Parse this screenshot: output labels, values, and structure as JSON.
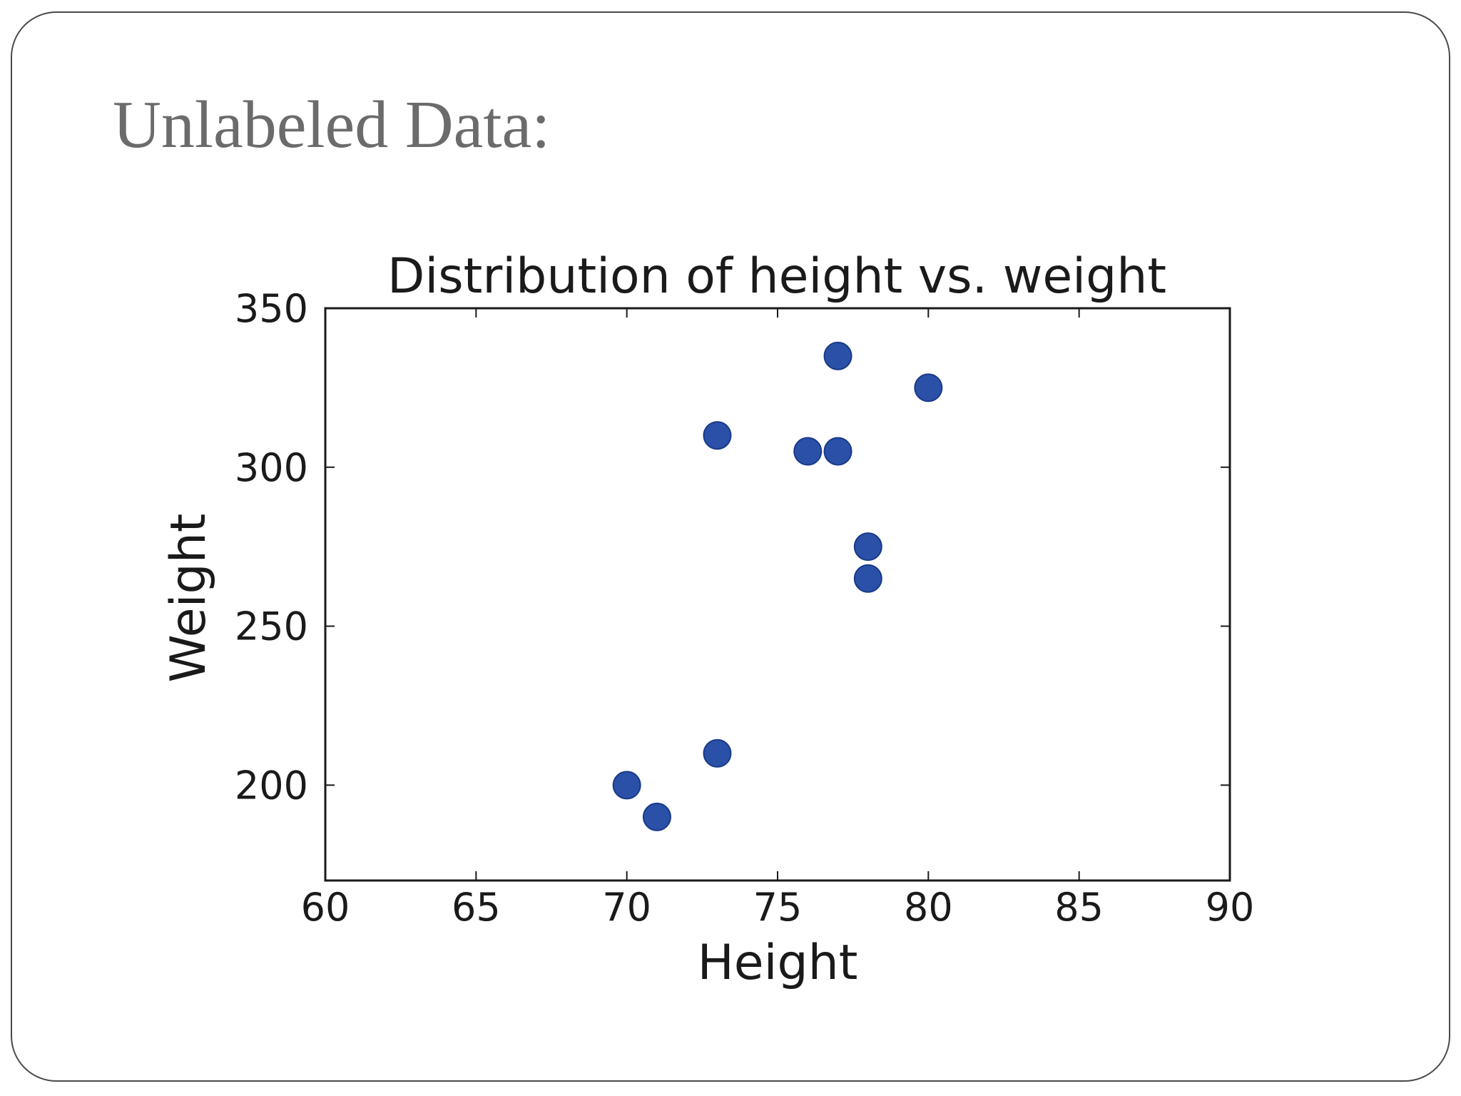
{
  "slide": {
    "title": "Unlabeled Data:"
  },
  "chart_data": {
    "type": "scatter",
    "title": "Distribution of height vs. weight",
    "xlabel": "Height",
    "ylabel": "Weight",
    "xlim": [
      60,
      90
    ],
    "ylim": [
      170,
      350
    ],
    "xticks": [
      60,
      65,
      70,
      75,
      80,
      85,
      90
    ],
    "yticks": [
      200,
      250,
      300,
      350
    ],
    "grid": false,
    "marker_color": "#2a50a8",
    "marker_edge_color": "#1a3a88",
    "points": [
      {
        "x": 70,
        "y": 200
      },
      {
        "x": 71,
        "y": 190
      },
      {
        "x": 73,
        "y": 210
      },
      {
        "x": 73,
        "y": 310
      },
      {
        "x": 76,
        "y": 305
      },
      {
        "x": 77,
        "y": 305
      },
      {
        "x": 77,
        "y": 335
      },
      {
        "x": 78,
        "y": 275
      },
      {
        "x": 78,
        "y": 265
      },
      {
        "x": 80,
        "y": 325
      }
    ]
  }
}
